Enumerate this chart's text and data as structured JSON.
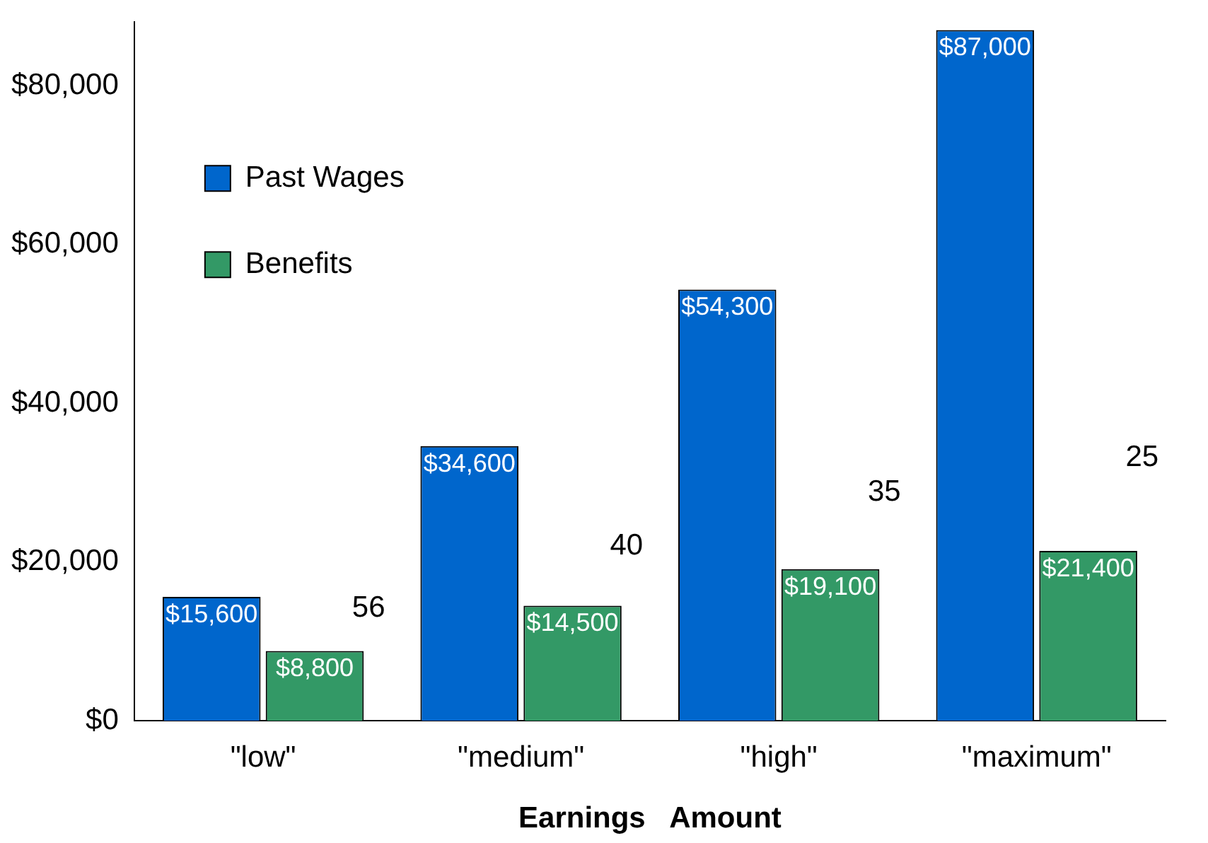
{
  "chart_data": {
    "type": "bar",
    "xlabel": "Earnings   Amount",
    "categories": [
      "\"low\"",
      "\"medium\"",
      "\"high\"",
      "\"maximum\""
    ],
    "series": [
      {
        "name": "Past Wages",
        "color": "#0066cc",
        "values": [
          15600,
          34600,
          54300,
          87000
        ],
        "value_labels": [
          "$15,600",
          "$34,600",
          "$54,300",
          "$87,000"
        ]
      },
      {
        "name": "Benefits",
        "color": "#339966",
        "values": [
          8800,
          14500,
          19100,
          21400
        ],
        "value_labels": [
          "$8,800",
          "$14,500",
          "$19,100",
          "$21,400"
        ]
      }
    ],
    "ylim": [
      0,
      88000
    ],
    "yticks": [
      {
        "value": 0,
        "label": "$0"
      },
      {
        "value": 20000,
        "label": "$20,000"
      },
      {
        "value": 40000,
        "label": "$40,000"
      },
      {
        "value": 60000,
        "label": "$60,000"
      },
      {
        "value": 80000,
        "label": "$80,000"
      }
    ],
    "annotations": [
      "56",
      "40",
      "35",
      "25"
    ],
    "legend": "top left",
    "grid": false
  }
}
